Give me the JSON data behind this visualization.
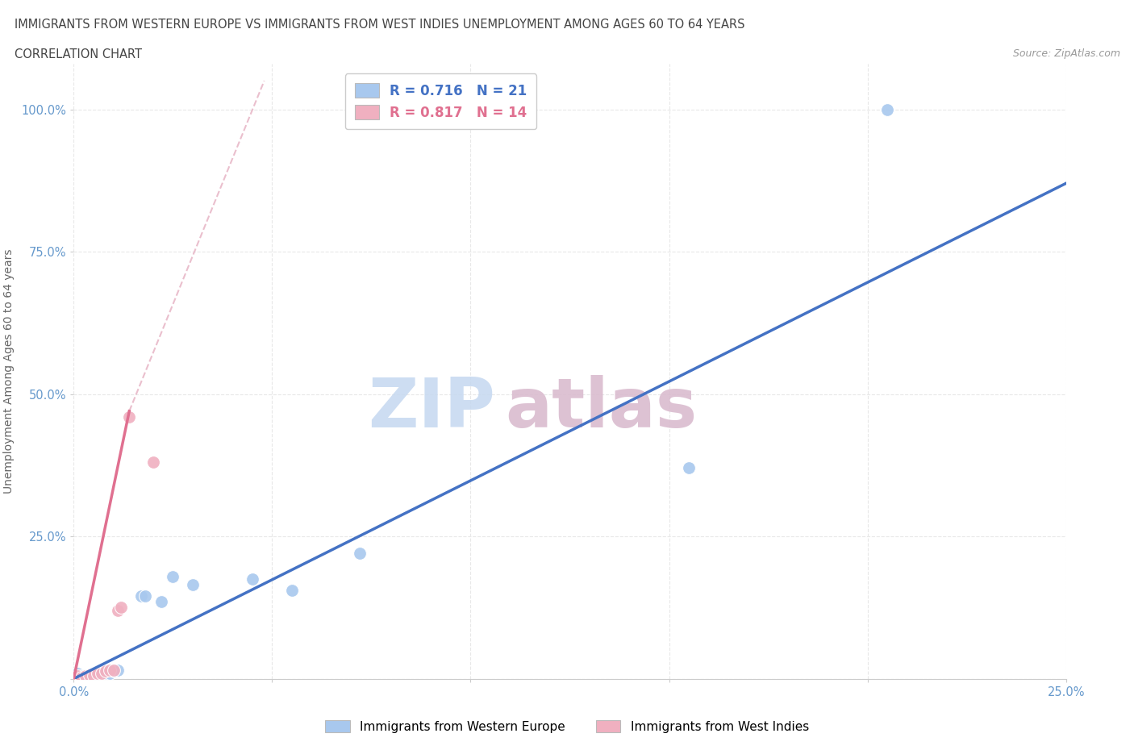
{
  "title_line1": "IMMIGRANTS FROM WESTERN EUROPE VS IMMIGRANTS FROM WEST INDIES UNEMPLOYMENT AMONG AGES 60 TO 64 YEARS",
  "title_line2": "CORRELATION CHART",
  "source": "Source: ZipAtlas.com",
  "ylabel": "Unemployment Among Ages 60 to 64 years",
  "xlim": [
    0,
    0.25
  ],
  "ylim": [
    0,
    1.08
  ],
  "x_ticks": [
    0.0,
    0.05,
    0.1,
    0.15,
    0.2,
    0.25
  ],
  "x_tick_labels": [
    "0.0%",
    "",
    "",
    "",
    "",
    "25.0%"
  ],
  "y_ticks": [
    0.0,
    0.25,
    0.5,
    0.75,
    1.0
  ],
  "y_tick_labels": [
    "",
    "25.0%",
    "50.0%",
    "75.0%",
    "100.0%"
  ],
  "blue_points": [
    [
      0.001,
      0.01
    ],
    [
      0.002,
      0.005
    ],
    [
      0.003,
      0.005
    ],
    [
      0.004,
      0.003
    ],
    [
      0.005,
      0.005
    ],
    [
      0.006,
      0.007
    ],
    [
      0.007,
      0.005
    ],
    [
      0.008,
      0.01
    ],
    [
      0.009,
      0.01
    ],
    [
      0.01,
      0.013
    ],
    [
      0.011,
      0.015
    ],
    [
      0.017,
      0.145
    ],
    [
      0.018,
      0.145
    ],
    [
      0.022,
      0.135
    ],
    [
      0.025,
      0.18
    ],
    [
      0.03,
      0.165
    ],
    [
      0.045,
      0.175
    ],
    [
      0.055,
      0.155
    ],
    [
      0.072,
      0.22
    ],
    [
      0.155,
      0.37
    ],
    [
      0.205,
      1.0
    ]
  ],
  "pink_points": [
    [
      0.001,
      0.005
    ],
    [
      0.002,
      0.003
    ],
    [
      0.003,
      0.005
    ],
    [
      0.004,
      0.007
    ],
    [
      0.005,
      0.005
    ],
    [
      0.006,
      0.01
    ],
    [
      0.007,
      0.01
    ],
    [
      0.008,
      0.013
    ],
    [
      0.009,
      0.015
    ],
    [
      0.01,
      0.015
    ],
    [
      0.011,
      0.12
    ],
    [
      0.012,
      0.125
    ],
    [
      0.014,
      0.46
    ],
    [
      0.02,
      0.38
    ]
  ],
  "r_blue": 0.716,
  "n_blue": 21,
  "r_pink": 0.817,
  "n_pink": 14,
  "blue_color": "#A8C8EE",
  "pink_color": "#F0B0C0",
  "blue_line_color": "#4472C4",
  "pink_line_color": "#E07090",
  "dashed_line_color": "#E8B8C8",
  "background_color": "#FFFFFF",
  "grid_color": "#E8E8E8",
  "watermark_zip_color": "#C5D8F0",
  "watermark_atlas_color": "#D8B8CC"
}
